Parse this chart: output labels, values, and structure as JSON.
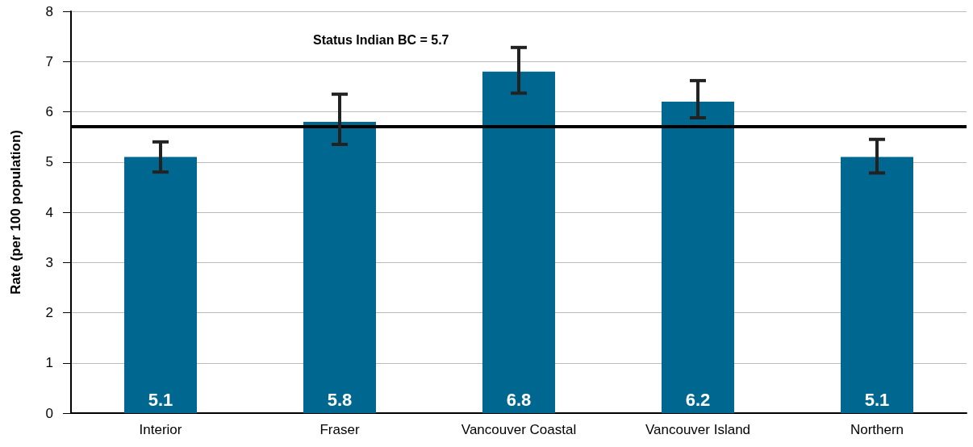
{
  "chart_data": {
    "type": "bar",
    "ylabel": "Rate (per 100 population)",
    "categories": [
      "Interior",
      "Fraser",
      "Vancouver Coastal",
      "Vancouver Island",
      "Northern"
    ],
    "values": [
      5.1,
      5.8,
      6.8,
      6.2,
      5.1
    ],
    "color": "#006890",
    "errors": [
      [
        4.8,
        5.4
      ],
      [
        5.35,
        6.35
      ],
      [
        6.37,
        7.28
      ],
      [
        5.88,
        6.62
      ],
      [
        4.78,
        5.45
      ]
    ],
    "data_labels": true,
    "ref_lines": [
      {
        "axis": "y",
        "value": 5.7,
        "label": "Status Indian BC = 5.7",
        "color": "#000000"
      }
    ],
    "ylim": [
      0,
      8
    ],
    "yticks": [
      0,
      1,
      2,
      3,
      4,
      5,
      6,
      7,
      8
    ],
    "grid": "y"
  }
}
